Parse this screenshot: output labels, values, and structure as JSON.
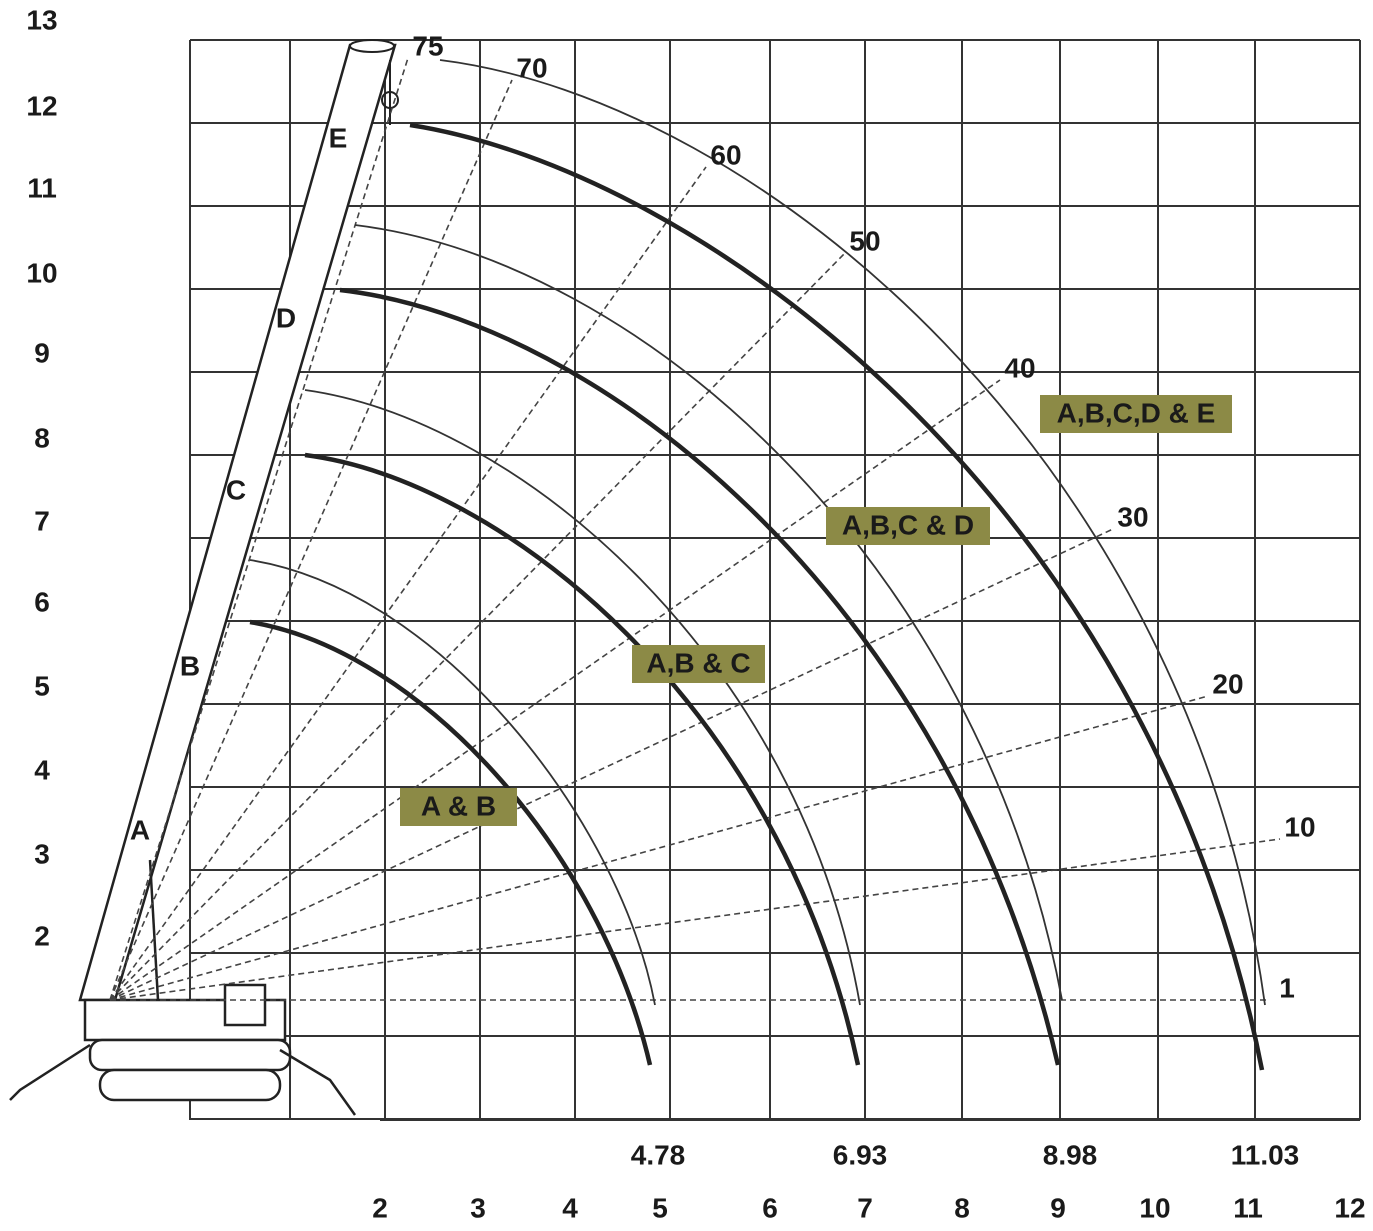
{
  "y_axis_labels": [
    "13",
    "12",
    "11",
    "10",
    "9",
    "8",
    "7",
    "6",
    "5",
    "4",
    "3",
    "2"
  ],
  "x_axis_labels": [
    "2",
    "3",
    "4",
    "5",
    "6",
    "7",
    "8",
    "9",
    "10",
    "11",
    "12"
  ],
  "radius_labels": [
    "4.78",
    "6.93",
    "8.98",
    "11.03"
  ],
  "angle_labels": [
    "75",
    "70",
    "60",
    "50",
    "40",
    "30",
    "20",
    "10",
    "1"
  ],
  "sections": [
    "A & B",
    "A,B & C",
    "A,B,C & D",
    "A,B,C,D & E"
  ],
  "boom_sections": [
    "A",
    "B",
    "C",
    "D",
    "E"
  ]
}
